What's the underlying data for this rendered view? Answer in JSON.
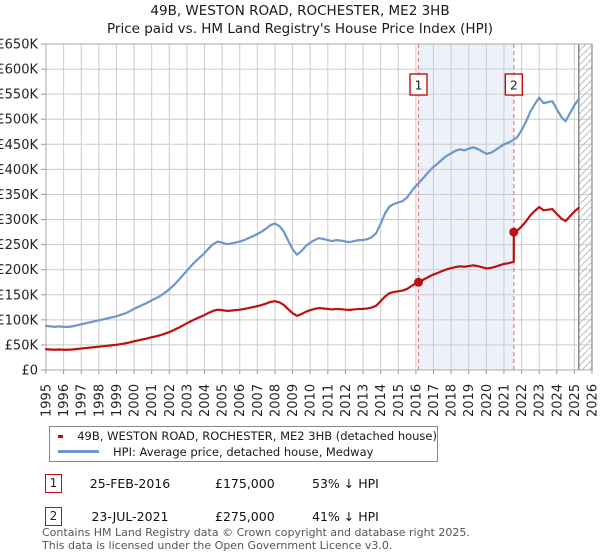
{
  "chart_data": {
    "type": "line",
    "title": "49B, WESTON ROAD, ROCHESTER, ME2 3HB",
    "subtitle": "Price paid vs. HM Land Registry's House Price Index (HPI)",
    "xlim": [
      1995,
      2026
    ],
    "ylim_gbp": [
      0,
      650000
    ],
    "grid": true,
    "legend_position": "bottom",
    "y_tick_labels": [
      "£0",
      "£50K",
      "£100K",
      "£150K",
      "£200K",
      "£250K",
      "£300K",
      "£350K",
      "£400K",
      "£450K",
      "£500K",
      "£550K",
      "£600K",
      "£650K"
    ],
    "x_tick_labels": [
      "1995",
      "1996",
      "1997",
      "1998",
      "1999",
      "2000",
      "2001",
      "2002",
      "2003",
      "2004",
      "2005",
      "2006",
      "2007",
      "2008",
      "2009",
      "2010",
      "2011",
      "2012",
      "2013",
      "2014",
      "2015",
      "2016",
      "2017",
      "2018",
      "2019",
      "2020",
      "2021",
      "2022",
      "2023",
      "2024",
      "2025",
      "2026"
    ],
    "hatch_start_year": 2025.25,
    "shade_between_sales": true,
    "series": [
      {
        "name": "HPI: Average price, detached house, Medway",
        "start_year": 1995.0,
        "step_years": 0.25,
        "values_gbp_k": [
          88,
          87,
          86,
          87,
          86,
          86,
          87,
          89,
          91,
          93,
          95,
          97,
          99,
          101,
          103,
          105,
          107,
          110,
          113,
          117,
          122,
          126,
          130,
          134,
          139,
          143,
          148,
          154,
          161,
          169,
          178,
          188,
          198,
          208,
          217,
          225,
          233,
          243,
          251,
          256,
          254,
          251,
          252,
          254,
          256,
          259,
          263,
          267,
          271,
          276,
          282,
          289,
          292,
          287,
          276,
          258,
          241,
          230,
          237,
          247,
          254,
          259,
          263,
          261,
          259,
          257,
          259,
          258,
          256,
          255,
          257,
          259,
          259,
          261,
          265,
          273,
          292,
          312,
          326,
          331,
          334,
          337,
          344,
          356,
          367,
          376,
          386,
          396,
          405,
          412,
          420,
          427,
          432,
          437,
          440,
          438,
          441,
          444,
          441,
          436,
          431,
          433,
          438,
          444,
          450,
          453,
          458,
          464,
          478,
          495,
          515,
          530,
          543,
          532,
          534,
          536,
          520,
          505,
          496,
          512,
          528,
          540
        ]
      },
      {
        "name": "49B, WESTON ROAD, ROCHESTER, ME2 3HB (detached house)",
        "rule": "HPI series rescaled through each sale price; vertical step at second sale"
      }
    ],
    "colors": {
      "price_line": "#bb1111",
      "hpi_line": "#6e96c8",
      "sale_dashed": "#f08080",
      "shade": "#edf2fa",
      "grid": "#cccccc",
      "border": "#aaaaaa",
      "hatch": "#bbbbbb",
      "axis_text": "#222222"
    }
  },
  "legend": {
    "items": [
      {
        "label": "49B, WESTON ROAD, ROCHESTER, ME2 3HB (detached house)",
        "color": "#bb1111"
      },
      {
        "label": "HPI: Average price, detached house, Medway",
        "color": "#6e96c8"
      }
    ]
  },
  "sales": [
    {
      "num": "1",
      "date": "25-FEB-2016",
      "year_decimal": 2016.15,
      "price": 175000,
      "price_label": "£175,000",
      "hpi_note": "53% ↓ HPI"
    },
    {
      "num": "2",
      "date": "23-JUL-2021",
      "year_decimal": 2021.56,
      "price": 275000,
      "price_label": "£275,000",
      "hpi_note": "41% ↓ HPI"
    }
  ],
  "footer": {
    "line1": "Contains HM Land Registry data © Crown copyright and database right 2025.",
    "line2": "This data is licensed under the Open Government Licence v3.0."
  }
}
